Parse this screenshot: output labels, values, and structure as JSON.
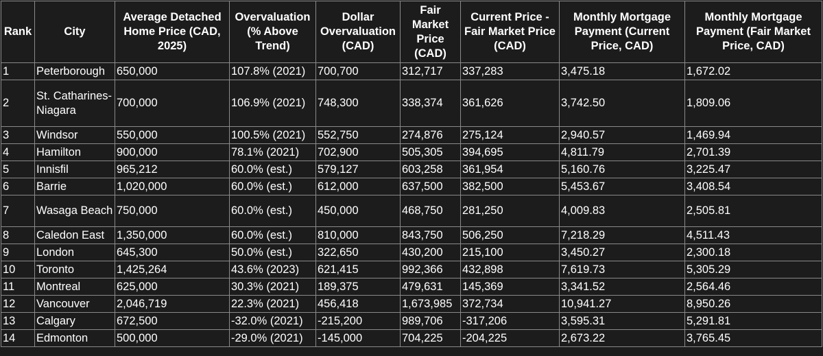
{
  "table": {
    "headers": [
      "Rank",
      "City",
      "Average Detached Home Price (CAD, 2025)",
      "Overvaluation (% Above Trend)",
      "Dollar Overvaluation (CAD)",
      "Fair Market Price (CAD)",
      "Current Price - Fair Market Price (CAD)",
      "Monthly Mortgage Payment (Current Price, CAD)",
      "Monthly Mortgage Payment (Fair Market Price, CAD)"
    ],
    "rows": [
      [
        "1",
        "Peterborough",
        "650,000",
        "107.8% (2021)",
        "700,700",
        "312,717",
        "337,283",
        "3,475.18",
        "1,672.02"
      ],
      [
        "2",
        "St. Catharines-Niagara",
        "700,000",
        "106.9% (2021)",
        "748,300",
        "338,374",
        "361,626",
        "3,742.50",
        "1,809.06"
      ],
      [
        "3",
        "Windsor",
        "550,000",
        "100.5% (2021)",
        "552,750",
        "274,876",
        "275,124",
        "2,940.57",
        "1,469.94"
      ],
      [
        "4",
        "Hamilton",
        "900,000",
        "78.1% (2021)",
        "702,900",
        "505,305",
        "394,695",
        "4,811.79",
        "2,701.39"
      ],
      [
        "5",
        "Innisfil",
        "965,212",
        "60.0% (est.)",
        "579,127",
        "603,258",
        "361,954",
        "5,160.76",
        "3,225.47"
      ],
      [
        "6",
        "Barrie",
        "1,020,000",
        "60.0% (est.)",
        "612,000",
        "637,500",
        "382,500",
        "5,453.67",
        "3,408.54"
      ],
      [
        "7",
        "Wasaga Beach",
        "750,000",
        "60.0% (est.)",
        "450,000",
        "468,750",
        "281,250",
        "4,009.83",
        "2,505.81"
      ],
      [
        "8",
        "Caledon East",
        "1,350,000",
        "60.0% (est.)",
        "810,000",
        "843,750",
        "506,250",
        "7,218.29",
        "4,511.43"
      ],
      [
        "9",
        "London",
        "645,300",
        "50.0% (est.)",
        "322,650",
        "430,200",
        "215,100",
        "3,450.27",
        "2,300.18"
      ],
      [
        "10",
        "Toronto",
        "1,425,264",
        "43.6% (2023)",
        "621,415",
        "992,366",
        "432,898",
        "7,619.73",
        "5,305.29"
      ],
      [
        "11",
        "Montreal",
        "625,000",
        "30.3% (2021)",
        "189,375",
        "479,631",
        "145,369",
        "3,341.52",
        "2,564.46"
      ],
      [
        "12",
        "Vancouver",
        "2,046,719",
        "22.3% (2021)",
        "456,418",
        "1,673,985",
        "372,734",
        "10,941.27",
        "8,950.26"
      ],
      [
        "13",
        "Calgary",
        "672,500",
        "-32.0% (2021)",
        "-215,200",
        "989,706",
        "-317,206",
        "3,595.31",
        "5,291.81"
      ],
      [
        "14",
        "Edmonton",
        "500,000",
        "-29.0% (2021)",
        "-145,000",
        "704,225",
        "-204,225",
        "2,673.22",
        "3,765.45"
      ]
    ]
  }
}
